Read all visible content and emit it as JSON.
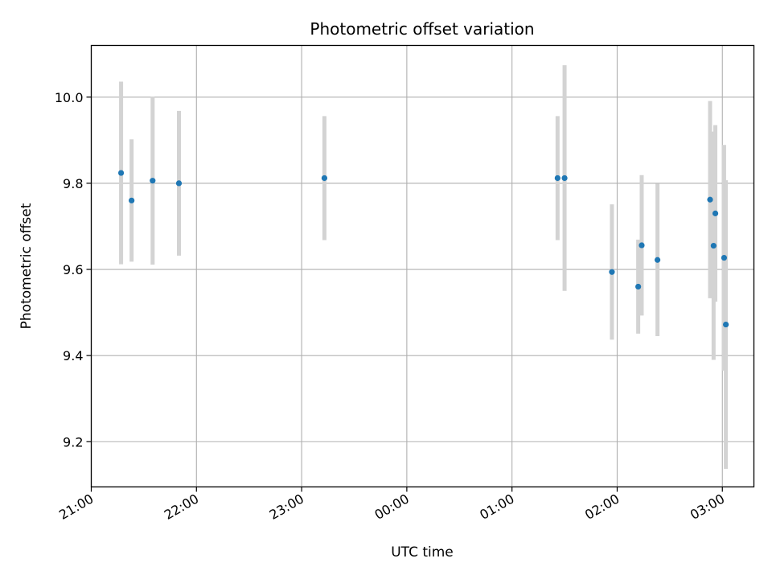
{
  "chart_data": {
    "type": "scatter",
    "title": "Photometric offset variation",
    "xlabel": "UTC time",
    "ylabel": "Photometric offset",
    "x_is_time": true,
    "x_ticks": [
      "21:00",
      "22:00",
      "23:00",
      "00:00",
      "01:00",
      "02:00",
      "03:00"
    ],
    "xlim": [
      "21:00",
      "03:18"
    ],
    "y_ticks": [
      9.2,
      9.4,
      9.6,
      9.8,
      10.0
    ],
    "ylim": [
      9.095,
      10.12
    ],
    "grid": true,
    "marker_color": "#1f77b4",
    "errorbar_color": "#d3d3d3",
    "points": [
      {
        "x": "21:17",
        "y": 9.824,
        "err": 0.212
      },
      {
        "x": "21:23",
        "y": 9.76,
        "err": 0.142
      },
      {
        "x": "21:35",
        "y": 9.806,
        "err": 0.195
      },
      {
        "x": "21:50",
        "y": 9.8,
        "err": 0.168
      },
      {
        "x": "23:13",
        "y": 9.812,
        "err": 0.144
      },
      {
        "x": "01:26",
        "y": 9.812,
        "err": 0.144
      },
      {
        "x": "01:30",
        "y": 9.812,
        "err": 0.262
      },
      {
        "x": "01:57",
        "y": 9.594,
        "err": 0.157
      },
      {
        "x": "02:12",
        "y": 9.56,
        "err": 0.109
      },
      {
        "x": "02:14",
        "y": 9.656,
        "err": 0.163
      },
      {
        "x": "02:23",
        "y": 9.622,
        "err": 0.177
      },
      {
        "x": "02:53",
        "y": 9.762,
        "err": 0.229
      },
      {
        "x": "02:55",
        "y": 9.655,
        "err": 0.265
      },
      {
        "x": "02:56",
        "y": 9.73,
        "err": 0.205
      },
      {
        "x": "03:01",
        "y": 9.627,
        "err": 0.262
      },
      {
        "x": "03:02",
        "y": 9.472,
        "err": 0.335
      }
    ]
  }
}
